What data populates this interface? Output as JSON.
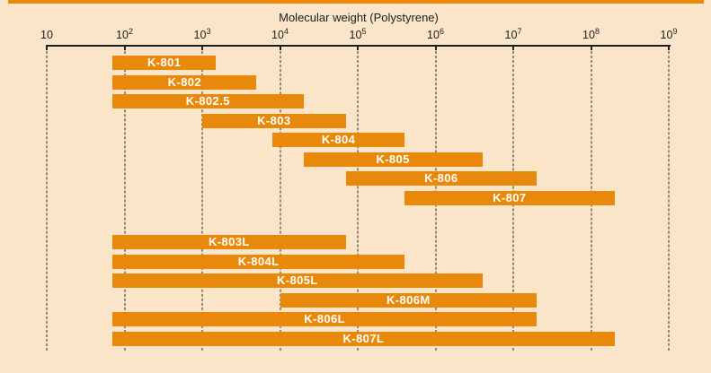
{
  "colors": {
    "background": "#FAE5C8",
    "bar": "#E8890B",
    "bar_label": "#FFFFFF",
    "axis": "#1D1D1B",
    "accent_strip": "#E8890B"
  },
  "chart_data": {
    "type": "bar",
    "subtype": "horizontal-range-bars",
    "title": "Molecular weight (Polystyrene)",
    "x_axis": {
      "scale": "log10",
      "min": 10,
      "max": 1000000000,
      "grid": "dashed-vertical-at-decades",
      "position": "top",
      "ticks": [
        {
          "base": "10",
          "exponent": "",
          "value": 10
        },
        {
          "base": "10",
          "exponent": "2",
          "value": 100
        },
        {
          "base": "10",
          "exponent": "3",
          "value": 1000
        },
        {
          "base": "10",
          "exponent": "4",
          "value": 10000
        },
        {
          "base": "10",
          "exponent": "5",
          "value": 100000
        },
        {
          "base": "10",
          "exponent": "6",
          "value": 1000000
        },
        {
          "base": "10",
          "exponent": "7",
          "value": 10000000
        },
        {
          "base": "10",
          "exponent": "8",
          "value": 100000000
        },
        {
          "base": "10",
          "exponent": "9",
          "value": 1000000000
        }
      ]
    },
    "series": [
      {
        "name": "K-801",
        "group": "upper",
        "row": 0,
        "mw_min": 70,
        "mw_max": 1500
      },
      {
        "name": "K-802",
        "group": "upper",
        "row": 1,
        "mw_min": 70,
        "mw_max": 5000
      },
      {
        "name": "K-802.5",
        "group": "upper",
        "row": 2,
        "mw_min": 70,
        "mw_max": 20000
      },
      {
        "name": "K-803",
        "group": "upper",
        "row": 3,
        "mw_min": 1000,
        "mw_max": 70000
      },
      {
        "name": "K-804",
        "group": "upper",
        "row": 4,
        "mw_min": 8000,
        "mw_max": 400000
      },
      {
        "name": "K-805",
        "group": "upper",
        "row": 5,
        "mw_min": 20000,
        "mw_max": 4000000
      },
      {
        "name": "K-806",
        "group": "upper",
        "row": 6,
        "mw_min": 70000,
        "mw_max": 20000000
      },
      {
        "name": "K-807",
        "group": "upper",
        "row": 7,
        "mw_min": 400000,
        "mw_max": 200000000
      },
      {
        "name": "K-803L",
        "group": "lower",
        "row": 0,
        "mw_min": 70,
        "mw_max": 70000
      },
      {
        "name": "K-804L",
        "group": "lower",
        "row": 1,
        "mw_min": 70,
        "mw_max": 400000
      },
      {
        "name": "K-805L",
        "group": "lower",
        "row": 2,
        "mw_min": 70,
        "mw_max": 4000000
      },
      {
        "name": "K-806M",
        "group": "lower",
        "row": 3,
        "mw_min": 10000,
        "mw_max": 20000000
      },
      {
        "name": "K-806L",
        "group": "lower",
        "row": 4,
        "mw_min": 70,
        "mw_max": 20000000
      },
      {
        "name": "K-807L",
        "group": "lower",
        "row": 5,
        "mw_min": 70,
        "mw_max": 200000000
      }
    ]
  }
}
